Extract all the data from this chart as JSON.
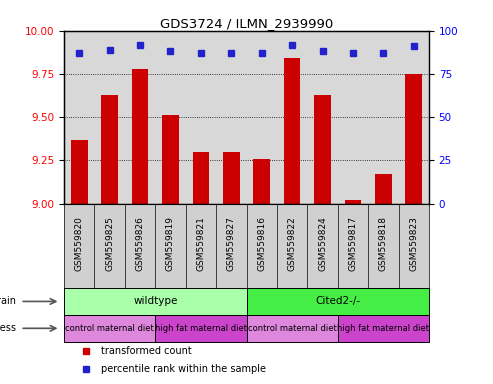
{
  "title": "GDS3724 / ILMN_2939990",
  "samples": [
    "GSM559820",
    "GSM559825",
    "GSM559826",
    "GSM559819",
    "GSM559821",
    "GSM559827",
    "GSM559816",
    "GSM559822",
    "GSM559824",
    "GSM559817",
    "GSM559818",
    "GSM559823"
  ],
  "transformed_counts": [
    9.37,
    9.63,
    9.78,
    9.51,
    9.3,
    9.3,
    9.26,
    9.84,
    9.63,
    9.02,
    9.17,
    9.75
  ],
  "percentile_ranks": [
    87,
    89,
    92,
    88,
    87,
    87,
    87,
    92,
    88,
    87,
    87,
    91
  ],
  "ylim_left": [
    9.0,
    10.0
  ],
  "ylim_right": [
    0,
    100
  ],
  "yticks_left": [
    9.0,
    9.25,
    9.5,
    9.75,
    10.0
  ],
  "yticks_right": [
    0,
    25,
    50,
    75,
    100
  ],
  "bar_color": "#cc0000",
  "dot_color": "#2222cc",
  "strain_labels": [
    {
      "label": "wildtype",
      "start": 0,
      "end": 6,
      "color": "#aaffaa"
    },
    {
      "label": "Cited2-/-",
      "start": 6,
      "end": 12,
      "color": "#44ee44"
    }
  ],
  "stress_groups": [
    {
      "label": "control maternal diet",
      "start": 0,
      "end": 3,
      "color": "#dd88dd"
    },
    {
      "label": "high fat maternal diet",
      "start": 3,
      "end": 6,
      "color": "#cc44cc"
    },
    {
      "label": "control maternal diet",
      "start": 6,
      "end": 9,
      "color": "#dd88dd"
    },
    {
      "label": "high fat maternal diet",
      "start": 9,
      "end": 12,
      "color": "#cc44cc"
    }
  ],
  "legend_red_label": "transformed count",
  "legend_blue_label": "percentile rank within the sample",
  "grid_dotted_values": [
    9.25,
    9.5,
    9.75
  ],
  "chart_bg": "#d8d8d8",
  "label_bg": "#d0d0d0",
  "white": "#ffffff"
}
